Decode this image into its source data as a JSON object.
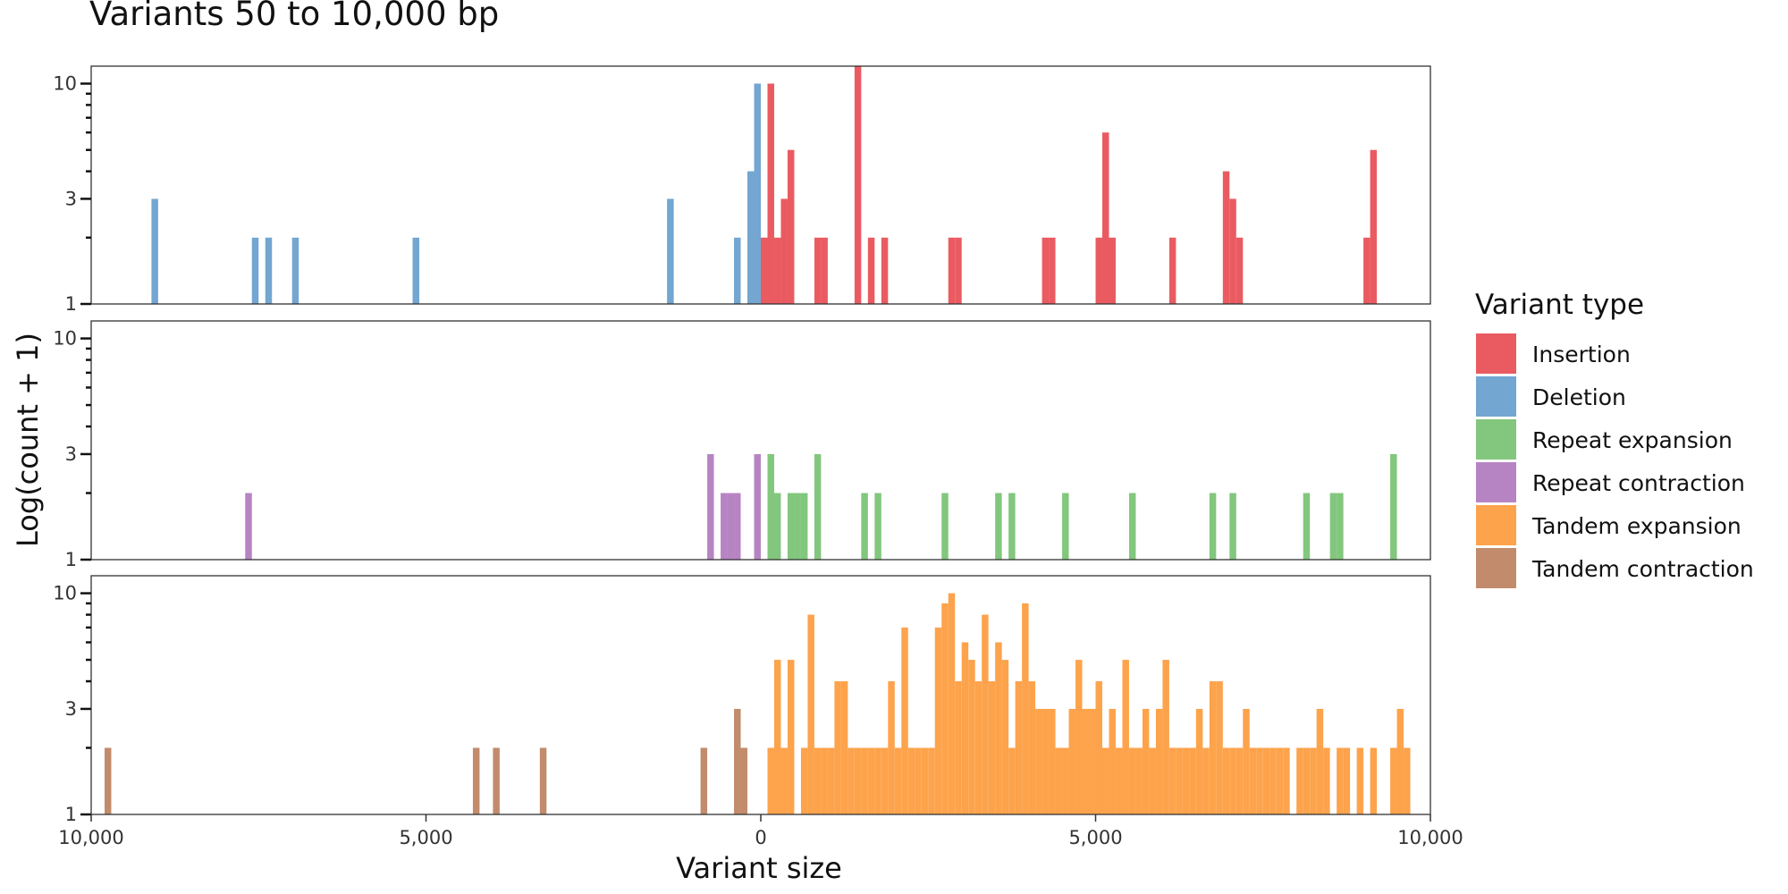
{
  "chart_data": {
    "type": "bar",
    "title": "Variants 50 to 10,000 bp",
    "xlabel": "Variant size",
    "ylabel": "Log(count + 1)",
    "x_axis": {
      "range": [
        -10000,
        10000
      ],
      "ticks": [
        -10000,
        -5000,
        0,
        5000,
        10000
      ],
      "tick_labels": [
        "10,000",
        "5,000",
        "0",
        "5,000",
        "10,000"
      ]
    },
    "y_axis": {
      "scale": "log",
      "range": [
        1,
        12
      ],
      "ticks": [
        1,
        3,
        10
      ],
      "tick_labels": [
        "1",
        "3",
        "10"
      ],
      "minor_ticks": [
        2,
        4,
        5,
        6,
        7,
        8,
        9
      ]
    },
    "bin_width_bp": 100,
    "legend": {
      "title": "Variant type",
      "placement": "right",
      "entries": [
        {
          "name": "Insertion",
          "color": "#ea5b61"
        },
        {
          "name": "Deletion",
          "color": "#73a6d1"
        },
        {
          "name": "Repeat expansion",
          "color": "#82c77d"
        },
        {
          "name": "Repeat contraction",
          "color": "#b784c3"
        },
        {
          "name": "Tandem expansion",
          "color": "#fda34c"
        },
        {
          "name": "Tandem contraction",
          "color": "#c28b6c"
        }
      ]
    },
    "panels": [
      {
        "series": [
          {
            "name": "Insertion",
            "color": "#ea5b61",
            "bins": [
              [
                0,
                2
              ],
              [
                100,
                10
              ],
              [
                200,
                2
              ],
              [
                300,
                3
              ],
              [
                400,
                5
              ],
              [
                800,
                2
              ],
              [
                900,
                2
              ],
              [
                1400,
                12
              ],
              [
                1600,
                2
              ],
              [
                1800,
                2
              ],
              [
                2800,
                2
              ],
              [
                2900,
                2
              ],
              [
                4200,
                2
              ],
              [
                4300,
                2
              ],
              [
                5000,
                2
              ],
              [
                5100,
                6
              ],
              [
                5200,
                2
              ],
              [
                6100,
                2
              ],
              [
                6900,
                4
              ],
              [
                7000,
                3
              ],
              [
                7100,
                2
              ],
              [
                9000,
                2
              ],
              [
                9100,
                5
              ]
            ]
          },
          {
            "name": "Deletion",
            "color": "#73a6d1",
            "bins": [
              [
                -9100,
                3
              ],
              [
                -7600,
                2
              ],
              [
                -7400,
                2
              ],
              [
                -7000,
                2
              ],
              [
                -5200,
                2
              ],
              [
                -1400,
                3
              ],
              [
                -400,
                2
              ],
              [
                -200,
                4
              ],
              [
                -100,
                10
              ]
            ]
          }
        ]
      },
      {
        "series": [
          {
            "name": "Repeat expansion",
            "color": "#82c77d",
            "bins": [
              [
                0,
                1
              ],
              [
                100,
                3
              ],
              [
                200,
                2
              ],
              [
                400,
                2
              ],
              [
                500,
                2
              ],
              [
                600,
                2
              ],
              [
                800,
                3
              ],
              [
                1500,
                2
              ],
              [
                1700,
                2
              ],
              [
                2700,
                2
              ],
              [
                3500,
                2
              ],
              [
                3700,
                2
              ],
              [
                4500,
                2
              ],
              [
                5500,
                2
              ],
              [
                6700,
                2
              ],
              [
                7000,
                2
              ],
              [
                8100,
                2
              ],
              [
                8500,
                2
              ],
              [
                8600,
                2
              ],
              [
                9400,
                3
              ]
            ]
          },
          {
            "name": "Repeat contraction",
            "color": "#b784c3",
            "bins": [
              [
                -7700,
                2
              ],
              [
                -800,
                3
              ],
              [
                -600,
                2
              ],
              [
                -500,
                2
              ],
              [
                -400,
                2
              ],
              [
                -100,
                3
              ]
            ]
          }
        ]
      },
      {
        "series": [
          {
            "name": "Tandem expansion",
            "color": "#fda34c",
            "bins": [
              [
                100,
                2
              ],
              [
                200,
                5
              ],
              [
                300,
                2
              ],
              [
                400,
                5
              ],
              [
                600,
                2
              ],
              [
                700,
                8
              ],
              [
                800,
                2
              ],
              [
                900,
                2
              ],
              [
                1000,
                2
              ],
              [
                1100,
                4
              ],
              [
                1200,
                4
              ],
              [
                1300,
                2
              ],
              [
                1400,
                2
              ],
              [
                1500,
                2
              ],
              [
                1600,
                2
              ],
              [
                1700,
                2
              ],
              [
                1800,
                2
              ],
              [
                1900,
                4
              ],
              [
                2000,
                2
              ],
              [
                2100,
                7
              ],
              [
                2200,
                2
              ],
              [
                2300,
                2
              ],
              [
                2400,
                2
              ],
              [
                2500,
                2
              ],
              [
                2600,
                7
              ],
              [
                2700,
                9
              ],
              [
                2800,
                10
              ],
              [
                2900,
                4
              ],
              [
                3000,
                6
              ],
              [
                3100,
                5
              ],
              [
                3200,
                4
              ],
              [
                3300,
                8
              ],
              [
                3400,
                4
              ],
              [
                3500,
                6
              ],
              [
                3600,
                5
              ],
              [
                3700,
                2
              ],
              [
                3800,
                4
              ],
              [
                3900,
                9
              ],
              [
                4000,
                4
              ],
              [
                4100,
                3
              ],
              [
                4200,
                3
              ],
              [
                4300,
                3
              ],
              [
                4400,
                2
              ],
              [
                4500,
                2
              ],
              [
                4600,
                3
              ],
              [
                4700,
                5
              ],
              [
                4800,
                3
              ],
              [
                4900,
                3
              ],
              [
                5000,
                4
              ],
              [
                5100,
                2
              ],
              [
                5200,
                3
              ],
              [
                5300,
                2
              ],
              [
                5400,
                5
              ],
              [
                5500,
                2
              ],
              [
                5600,
                2
              ],
              [
                5700,
                3
              ],
              [
                5800,
                2
              ],
              [
                5900,
                3
              ],
              [
                6000,
                5
              ],
              [
                6100,
                2
              ],
              [
                6200,
                2
              ],
              [
                6300,
                2
              ],
              [
                6400,
                2
              ],
              [
                6500,
                3
              ],
              [
                6600,
                2
              ],
              [
                6700,
                4
              ],
              [
                6800,
                4
              ],
              [
                6900,
                2
              ],
              [
                7000,
                2
              ],
              [
                7100,
                2
              ],
              [
                7200,
                3
              ],
              [
                7300,
                2
              ],
              [
                7400,
                2
              ],
              [
                7500,
                2
              ],
              [
                7600,
                2
              ],
              [
                7700,
                2
              ],
              [
                7800,
                2
              ],
              [
                8000,
                2
              ],
              [
                8100,
                2
              ],
              [
                8200,
                2
              ],
              [
                8300,
                3
              ],
              [
                8400,
                2
              ],
              [
                8600,
                2
              ],
              [
                8700,
                2
              ],
              [
                8900,
                2
              ],
              [
                9100,
                2
              ],
              [
                9400,
                2
              ],
              [
                9500,
                3
              ],
              [
                9600,
                2
              ]
            ]
          },
          {
            "name": "Tandem contraction",
            "color": "#c28b6c",
            "bins": [
              [
                -9800,
                2
              ],
              [
                -4300,
                2
              ],
              [
                -4000,
                2
              ],
              [
                -3300,
                2
              ],
              [
                -900,
                2
              ],
              [
                -400,
                3
              ],
              [
                -300,
                2
              ]
            ]
          }
        ]
      }
    ]
  }
}
